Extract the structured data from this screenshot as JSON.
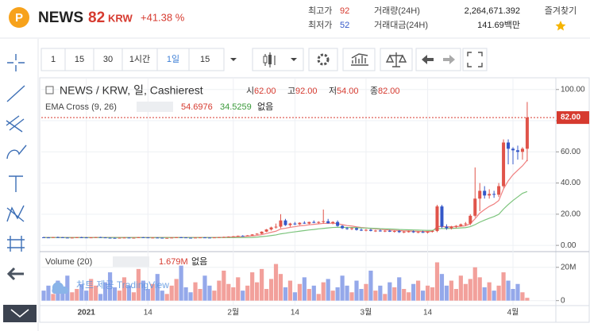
{
  "header": {
    "symbol": "NEWS",
    "price": "82",
    "currency": "KRW",
    "change": "+41.38 %",
    "high_label": "최고가",
    "high": "92",
    "low_label": "최저가",
    "low": "52",
    "volume_label": "거래량(24H)",
    "volume": "2,264,671.392",
    "amount_label": "거래대금(24H)",
    "amount": "141.69백만",
    "favorite": "즐겨찾기"
  },
  "toolbar": {
    "buttons": [
      "1",
      "15",
      "30",
      "1시간",
      "1일",
      "15"
    ]
  },
  "legend": {
    "title": "NEWS / KRW, 일, Cashierest",
    "items": [
      {
        "label": "시",
        "value": "62.00"
      },
      {
        "label": "고",
        "value": "92.00"
      },
      {
        "label": "저",
        "value": "54.00"
      },
      {
        "label": "종",
        "value": "82.00"
      }
    ],
    "indicator": "EMA Cross (9, 26)",
    "indicator_extra": "없음",
    "volume_title": "Volume (20)",
    "volume_value": "1.679M",
    "volume_extra": "없음",
    "watermark": "차트 제공 TradingView"
  },
  "chart_data": {
    "type": "candlestick",
    "categories": [
      null,
      null,
      null,
      null,
      null,
      null,
      null,
      null,
      null,
      "2021",
      null,
      null,
      null,
      null,
      null,
      null,
      null,
      null,
      null,
      null,
      null,
      null,
      "14",
      null,
      null,
      null,
      null,
      null,
      null,
      null,
      null,
      null,
      null,
      null,
      null,
      null,
      null,
      null,
      null,
      null,
      "2월",
      null,
      null,
      null,
      null,
      null,
      null,
      null,
      null,
      null,
      null,
      null,
      null,
      "14",
      null,
      null,
      null,
      null,
      null,
      null,
      null,
      null,
      null,
      null,
      null,
      null,
      null,
      null,
      "3월",
      null,
      null,
      null,
      null,
      null,
      null,
      null,
      null,
      null,
      null,
      null,
      null,
      "14",
      null,
      null,
      null,
      null,
      null,
      null,
      null,
      null,
      null,
      null,
      null,
      null,
      null,
      null,
      null,
      null,
      null,
      "4월",
      null,
      null,
      null
    ],
    "ohlc": [
      [
        5.2,
        5.5,
        5.0,
        5.1
      ],
      [
        5.1,
        5.3,
        4.8,
        5.0
      ],
      [
        5.0,
        5.4,
        4.9,
        5.3
      ],
      [
        5.3,
        5.6,
        5.1,
        5.2
      ],
      [
        5.2,
        5.4,
        4.9,
        5.0
      ],
      [
        5.0,
        5.2,
        4.7,
        4.8
      ],
      [
        4.8,
        5.1,
        4.6,
        5.0
      ],
      [
        5.0,
        5.3,
        4.9,
        5.2
      ],
      [
        5.2,
        5.5,
        5.0,
        5.1
      ],
      [
        5.1,
        5.3,
        4.8,
        4.9
      ],
      [
        4.9,
        5.2,
        4.7,
        5.1
      ],
      [
        5.1,
        5.4,
        5.0,
        5.3
      ],
      [
        5.3,
        5.5,
        5.0,
        5.1
      ],
      [
        5.1,
        5.2,
        4.8,
        4.9
      ],
      [
        4.9,
        5.1,
        4.6,
        4.8
      ],
      [
        4.8,
        5.0,
        4.5,
        4.7
      ],
      [
        4.7,
        5.0,
        4.6,
        4.9
      ],
      [
        4.9,
        5.2,
        4.8,
        5.0
      ],
      [
        5.0,
        5.1,
        4.7,
        4.8
      ],
      [
        4.8,
        5.0,
        4.6,
        4.9
      ],
      [
        4.9,
        5.3,
        4.8,
        5.2
      ],
      [
        5.2,
        5.4,
        5.0,
        5.1
      ],
      [
        5.1,
        5.2,
        4.8,
        4.9
      ],
      [
        4.9,
        5.1,
        4.7,
        5.0
      ],
      [
        5.0,
        5.2,
        4.8,
        4.9
      ],
      [
        4.9,
        5.0,
        4.6,
        4.7
      ],
      [
        4.7,
        4.9,
        4.5,
        4.8
      ],
      [
        4.8,
        5.1,
        4.7,
        5.0
      ],
      [
        5.0,
        5.3,
        4.9,
        5.2
      ],
      [
        5.2,
        5.4,
        5.0,
        5.1
      ],
      [
        5.1,
        5.2,
        4.8,
        4.9
      ],
      [
        4.9,
        5.0,
        4.6,
        4.8
      ],
      [
        4.8,
        5.1,
        4.7,
        5.0
      ],
      [
        5.0,
        5.2,
        4.9,
        5.1
      ],
      [
        5.1,
        5.3,
        4.9,
        5.0
      ],
      [
        5.0,
        5.1,
        4.7,
        4.9
      ],
      [
        4.9,
        5.2,
        4.8,
        5.1
      ],
      [
        5.1,
        5.4,
        5.0,
        5.3
      ],
      [
        5.3,
        5.6,
        5.1,
        5.4
      ],
      [
        5.4,
        5.8,
        5.2,
        5.6
      ],
      [
        5.6,
        6.0,
        5.4,
        5.8
      ],
      [
        5.8,
        6.3,
        5.6,
        6.1
      ],
      [
        6.1,
        6.5,
        5.8,
        6.0
      ],
      [
        6.0,
        6.6,
        5.9,
        6.4
      ],
      [
        6.4,
        7.2,
        6.2,
        7.0
      ],
      [
        7.0,
        7.8,
        6.8,
        7.5
      ],
      [
        7.5,
        9.0,
        7.2,
        8.8
      ],
      [
        8.8,
        10.5,
        8.5,
        10.2
      ],
      [
        10.2,
        12.0,
        9.5,
        11.5
      ],
      [
        11.5,
        14.0,
        10.8,
        12.0
      ],
      [
        12.0,
        20.0,
        11.0,
        16.0
      ],
      [
        16.0,
        17.0,
        12.5,
        13.0
      ],
      [
        13.0,
        14.5,
        12.0,
        14.0
      ],
      [
        14.0,
        15.0,
        13.0,
        13.5
      ],
      [
        13.5,
        14.8,
        13.0,
        14.5
      ],
      [
        14.5,
        15.5,
        13.8,
        14.0
      ],
      [
        14.0,
        15.2,
        13.5,
        15.0
      ],
      [
        15.0,
        16.0,
        14.2,
        14.5
      ],
      [
        14.5,
        15.5,
        13.8,
        15.0
      ],
      [
        15.0,
        23.0,
        14.0,
        15.5
      ],
      [
        15.5,
        17.0,
        14.0,
        14.2
      ],
      [
        14.2,
        15.5,
        13.5,
        15.0
      ],
      [
        15.0,
        16.0,
        12.0,
        12.5
      ],
      [
        12.5,
        13.0,
        10.5,
        11.0
      ],
      [
        11.0,
        11.8,
        10.0,
        10.5
      ],
      [
        10.5,
        11.5,
        9.8,
        11.0
      ],
      [
        11.0,
        11.5,
        9.5,
        10.0
      ],
      [
        10.0,
        10.8,
        9.2,
        9.6
      ],
      [
        9.6,
        10.5,
        9.0,
        10.0
      ],
      [
        10.0,
        10.6,
        9.0,
        9.3
      ],
      [
        9.3,
        10.0,
        8.6,
        9.5
      ],
      [
        9.5,
        10.2,
        8.8,
        9.0
      ],
      [
        9.0,
        9.8,
        8.5,
        9.4
      ],
      [
        9.4,
        10.0,
        8.6,
        8.8
      ],
      [
        8.8,
        9.6,
        8.2,
        9.2
      ],
      [
        9.2,
        9.8,
        8.0,
        8.5
      ],
      [
        8.5,
        9.2,
        7.8,
        8.8
      ],
      [
        8.8,
        9.5,
        8.2,
        9.0
      ],
      [
        9.0,
        9.6,
        8.0,
        8.4
      ],
      [
        8.4,
        9.0,
        7.8,
        8.6
      ],
      [
        8.6,
        9.4,
        8.0,
        8.2
      ],
      [
        8.2,
        9.0,
        7.6,
        8.8
      ],
      [
        8.8,
        9.5,
        8.3,
        9.2
      ],
      [
        9.2,
        26.0,
        8.5,
        25.0
      ],
      [
        25.0,
        26.0,
        11.0,
        12.0
      ],
      [
        12.0,
        13.5,
        10.0,
        11.0
      ],
      [
        11.0,
        12.5,
        10.2,
        12.0
      ],
      [
        12.0,
        13.0,
        11.0,
        12.5
      ],
      [
        12.5,
        14.0,
        12.0,
        13.5
      ],
      [
        13.5,
        15.0,
        12.5,
        14.0
      ],
      [
        14.0,
        20.0,
        13.0,
        19.0
      ],
      [
        19.0,
        50.0,
        18.0,
        30.0
      ],
      [
        30.0,
        40.0,
        22.0,
        35.0
      ],
      [
        35.0,
        38.0,
        30.0,
        32.0
      ],
      [
        32.0,
        36.0,
        30.0,
        33.0
      ],
      [
        33.0,
        35.0,
        30.5,
        32.5
      ],
      [
        32.5,
        40.0,
        31.0,
        38.0
      ],
      [
        38.0,
        68.0,
        37.0,
        66.0
      ],
      [
        66.0,
        68.0,
        52.0,
        62.0
      ],
      [
        62.0,
        63.0,
        52.0,
        61.0
      ],
      [
        61.0,
        64.0,
        55.0,
        60.0
      ],
      [
        60.0,
        63.0,
        55.0,
        62.0
      ],
      [
        62.0,
        92.0,
        54.0,
        82.0
      ]
    ],
    "volume": [
      6000000,
      9000000,
      4000000,
      12000000,
      8000000,
      15000000,
      5000000,
      7000000,
      10000000,
      6000000,
      13000000,
      9000000,
      4000000,
      11000000,
      17000000,
      8000000,
      6000000,
      14000000,
      9000000,
      5000000,
      19000000,
      12000000,
      7000000,
      10000000,
      16000000,
      6000000,
      4000000,
      9000000,
      13000000,
      21000000,
      8000000,
      5000000,
      11000000,
      7000000,
      15000000,
      9000000,
      6000000,
      12000000,
      18000000,
      10000000,
      8000000,
      14000000,
      6000000,
      9000000,
      17000000,
      11000000,
      19000000,
      7000000,
      13000000,
      22000000,
      16000000,
      8000000,
      12000000,
      5000000,
      10000000,
      14000000,
      7000000,
      9000000,
      4000000,
      11000000,
      13000000,
      6000000,
      8000000,
      15000000,
      9000000,
      5000000,
      12000000,
      7000000,
      10000000,
      18000000,
      6000000,
      9000000,
      4000000,
      11000000,
      8000000,
      14000000,
      7000000,
      5000000,
      10000000,
      12000000,
      6000000,
      9000000,
      8000000,
      23000000,
      16000000,
      9000000,
      12000000,
      7000000,
      15000000,
      10000000,
      13000000,
      20000000,
      14000000,
      8000000,
      11000000,
      6000000,
      9000000,
      17000000,
      12000000,
      7000000,
      10000000,
      5000000,
      1679000
    ],
    "series": [
      {
        "name": "EMA 9",
        "color": "#f08080",
        "values": [
          5.1,
          5.1,
          5.1,
          5.1,
          5.1,
          5.1,
          5.1,
          5.1,
          5.1,
          5.1,
          5.1,
          5.1,
          5.1,
          5.1,
          5.1,
          5.1,
          5.1,
          5.1,
          5.1,
          5.1,
          5.1,
          5.1,
          5.1,
          5.1,
          5.1,
          5.1,
          5.1,
          5.1,
          5.1,
          5.1,
          5.1,
          5.1,
          5.1,
          5.1,
          5.1,
          5.1,
          5.1,
          5.1,
          5.2,
          5.3,
          5.4,
          5.6,
          5.7,
          5.9,
          6.1,
          6.4,
          6.9,
          7.6,
          8.4,
          9.1,
          10.5,
          11.0,
          11.6,
          12.0,
          12.5,
          12.8,
          13.2,
          13.5,
          13.8,
          14.1,
          14.1,
          14.3,
          13.9,
          13.3,
          12.7,
          12.4,
          11.9,
          11.5,
          11.2,
          10.8,
          10.6,
          10.3,
          10.1,
          9.8,
          9.7,
          9.5,
          9.3,
          9.3,
          9.1,
          9.0,
          8.9,
          8.9,
          8.9,
          12.1,
          12.1,
          11.9,
          11.9,
          12.0,
          12.3,
          12.6,
          13.9,
          17.1,
          20.7,
          23.0,
          25.0,
          26.5,
          28.8,
          36.2,
          41.4,
          45.3,
          48.2,
          51.0,
          54.6976
        ]
      },
      {
        "name": "EMA 26",
        "color": "#7cc47c",
        "values": [
          5.0,
          5.0,
          5.0,
          5.0,
          5.0,
          5.0,
          5.0,
          5.0,
          5.0,
          5.0,
          5.0,
          5.0,
          5.0,
          5.0,
          5.0,
          5.0,
          5.0,
          5.0,
          5.0,
          5.0,
          5.0,
          5.0,
          5.0,
          5.0,
          5.0,
          5.0,
          5.0,
          5.0,
          5.0,
          5.0,
          5.0,
          5.0,
          5.0,
          5.0,
          5.0,
          5.0,
          5.0,
          5.0,
          5.0,
          5.0,
          5.0,
          5.0,
          5.0,
          5.0,
          5.1,
          5.3,
          5.6,
          5.9,
          6.3,
          6.7,
          7.4,
          7.8,
          8.3,
          8.7,
          9.1,
          9.5,
          9.9,
          10.2,
          10.6,
          10.9,
          11.2,
          11.5,
          11.6,
          11.6,
          11.5,
          11.5,
          11.4,
          11.2,
          11.1,
          11.0,
          10.9,
          10.7,
          10.6,
          10.5,
          10.4,
          10.2,
          10.1,
          10.0,
          9.9,
          9.8,
          9.7,
          9.6,
          9.6,
          10.7,
          10.8,
          10.8,
          10.9,
          11.0,
          11.2,
          11.4,
          12.0,
          13.3,
          14.9,
          16.2,
          17.4,
          18.5,
          19.9,
          23.3,
          26.2,
          28.8,
          31.1,
          33.4,
          34.5259
        ]
      }
    ],
    "up_color": "#e0544a",
    "down_color": "#3457c8",
    "volume_up_color": "#f2a09b",
    "volume_down_color": "#94a8ea",
    "ylim": [
      -3.5,
      106.5
    ],
    "yticks": [
      {
        "value": 0,
        "label": "0.00"
      },
      {
        "value": 20,
        "label": "20.00"
      },
      {
        "value": 40,
        "label": "40.00"
      },
      {
        "value": 60,
        "label": "60.00"
      },
      {
        "value": 80,
        "label": "80.00"
      },
      {
        "value": 100,
        "label": "100.00"
      }
    ],
    "last_price": {
      "value": 82,
      "label": "82.00"
    },
    "last_price_color": "#d63a2f",
    "volume_ylim": [
      -3000000,
      28000000
    ],
    "volume_yticks": [
      0,
      {
        "value": 20000000,
        "label": "20M"
      }
    ],
    "grid": true
  }
}
